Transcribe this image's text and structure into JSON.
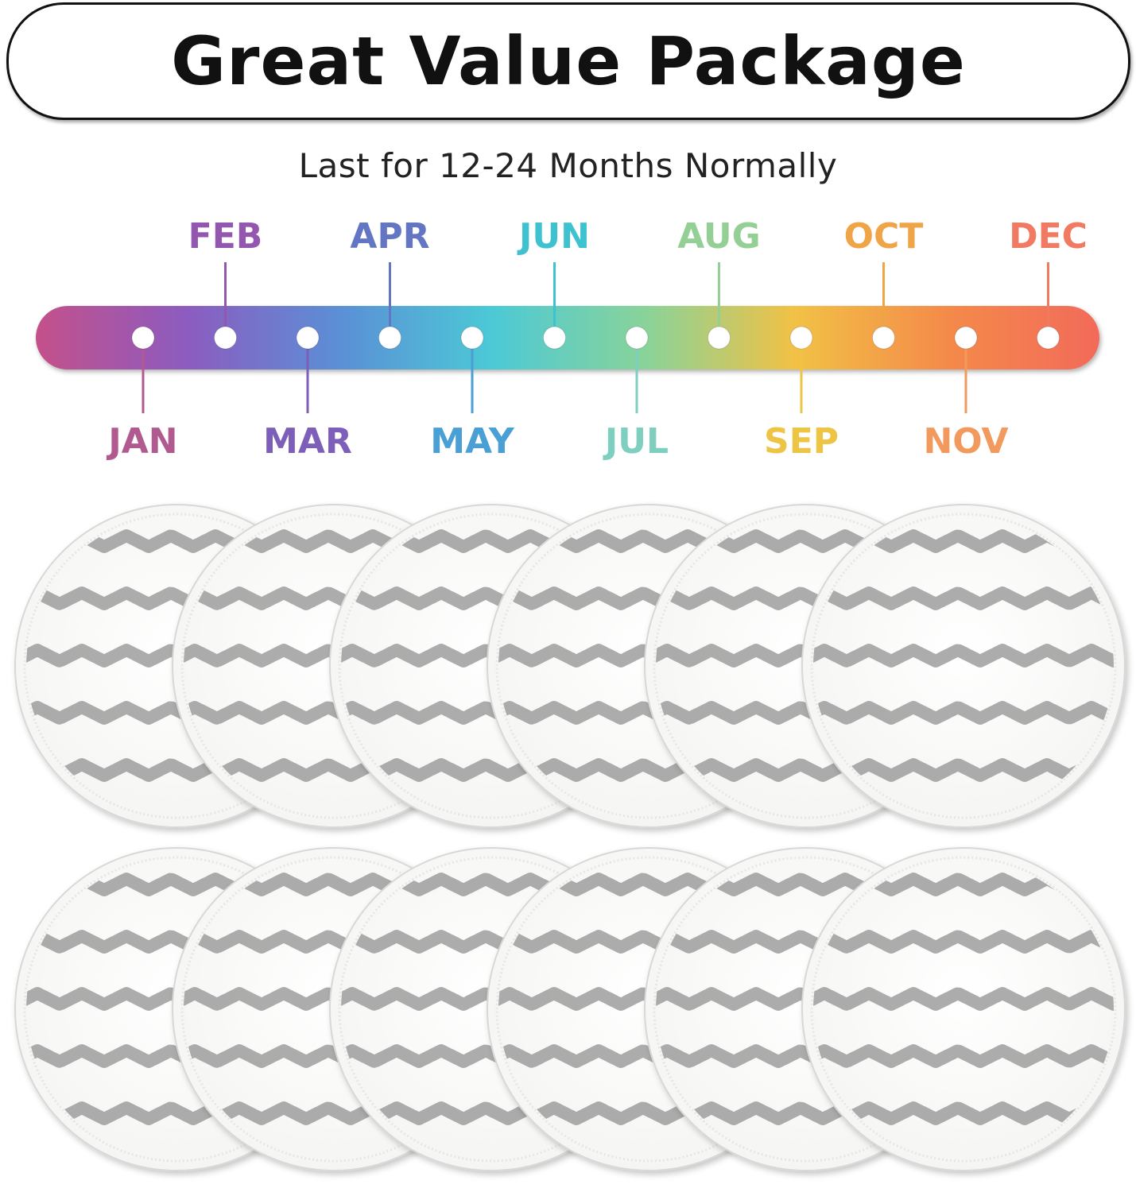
{
  "header": {
    "title": "Great Value Package"
  },
  "subtitle": "Last for 12-24 Months Normally",
  "timeline": {
    "gradient_colors": [
      "#c4508a",
      "#8c5cc0",
      "#5b8fd6",
      "#4cc9d6",
      "#88d39a",
      "#f2c145",
      "#f48a4a",
      "#f26a5a"
    ],
    "months": [
      {
        "label": "JAN",
        "color": "#b05a90",
        "position": "below"
      },
      {
        "label": "FEB",
        "color": "#9457b0",
        "position": "above"
      },
      {
        "label": "MAR",
        "color": "#7d5eb8",
        "position": "below"
      },
      {
        "label": "APR",
        "color": "#6276c4",
        "position": "above"
      },
      {
        "label": "MAY",
        "color": "#4a9fd4",
        "position": "below"
      },
      {
        "label": "JUN",
        "color": "#3ec2cf",
        "position": "above"
      },
      {
        "label": "JUL",
        "color": "#7ecfc0",
        "position": "below"
      },
      {
        "label": "AUG",
        "color": "#94d095",
        "position": "above"
      },
      {
        "label": "SEP",
        "color": "#eec444",
        "position": "below"
      },
      {
        "label": "OCT",
        "color": "#f0a448",
        "position": "above"
      },
      {
        "label": "NOV",
        "color": "#f29a5e",
        "position": "below"
      },
      {
        "label": "DEC",
        "color": "#f07a62",
        "position": "above"
      }
    ]
  },
  "pads": {
    "rows": 2,
    "per_row": 6,
    "pad_color": "#f5f5f3",
    "stripe_color": "#9e9e9e"
  }
}
